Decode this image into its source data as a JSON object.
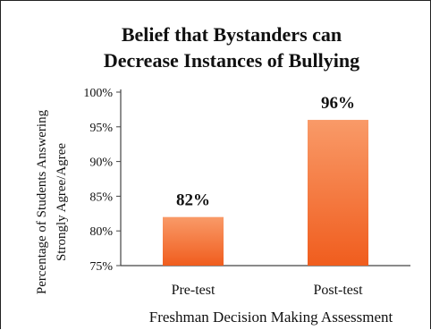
{
  "chart_data": {
    "type": "bar",
    "title_lines": [
      "Belief that Bystanders can",
      "Decrease Instances of Bullying"
    ],
    "ylabel_lines": [
      "Percentage of Students Answering",
      "Strongly Agree/Agree"
    ],
    "xlabel": "Freshman Decision Making Assessment",
    "categories": [
      "Pre-test",
      "Post-test"
    ],
    "values": [
      82,
      96
    ],
    "data_labels": [
      "82%",
      "96%"
    ],
    "ylim": [
      75,
      100
    ],
    "yticks": [
      75,
      80,
      85,
      90,
      95,
      100
    ],
    "ytick_labels": [
      "75%",
      "80%",
      "85%",
      "90%",
      "95%",
      "100%"
    ],
    "grid": false,
    "bar_color_top": "#f99a68",
    "bar_color_bottom": "#f05d1e"
  }
}
